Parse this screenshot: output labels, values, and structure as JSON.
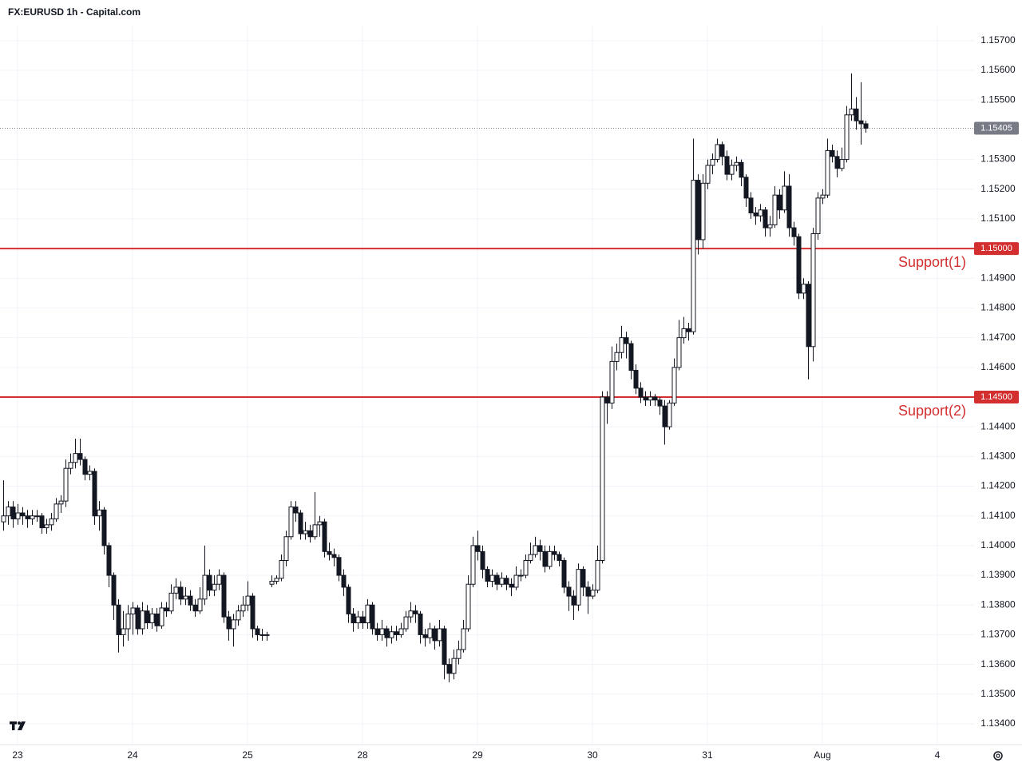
{
  "chart_data": {
    "type": "candlestick",
    "title": "FX:EURUSD 1h - Capital.com",
    "colors": {
      "up": "#ffffff",
      "down": "#131722",
      "outline": "#131722",
      "support": "#d32f2f",
      "last": "#787b86"
    },
    "grid": true,
    "ylim": [
      1.1333,
      1.15748
    ],
    "yticks": [
      {
        "value": 1.134,
        "label": "1.13400"
      },
      {
        "value": 1.135,
        "label": "1.13500"
      },
      {
        "value": 1.136,
        "label": "1.13600"
      },
      {
        "value": 1.137,
        "label": "1.13700"
      },
      {
        "value": 1.138,
        "label": "1.13800"
      },
      {
        "value": 1.139,
        "label": "1.13900"
      },
      {
        "value": 1.14,
        "label": "1.14000"
      },
      {
        "value": 1.141,
        "label": "1.14100"
      },
      {
        "value": 1.142,
        "label": "1.14200"
      },
      {
        "value": 1.143,
        "label": "1.14300"
      },
      {
        "value": 1.144,
        "label": "1.14400"
      },
      {
        "value": 1.146,
        "label": "1.14600"
      },
      {
        "value": 1.147,
        "label": "1.14700"
      },
      {
        "value": 1.148,
        "label": "1.14800"
      },
      {
        "value": 1.149,
        "label": "1.14900"
      },
      {
        "value": 1.151,
        "label": "1.15100"
      },
      {
        "value": 1.152,
        "label": "1.15200"
      },
      {
        "value": 1.153,
        "label": "1.15300"
      },
      {
        "value": 1.155,
        "label": "1.15500"
      },
      {
        "value": 1.156,
        "label": "1.15600"
      },
      {
        "value": 1.157,
        "label": "1.15700"
      }
    ],
    "xlim": [
      -0.67,
      202.67
    ],
    "xticks": [
      {
        "value": 3,
        "label": "23"
      },
      {
        "value": 27,
        "label": "24"
      },
      {
        "value": 51,
        "label": "25"
      },
      {
        "value": 75,
        "label": "28"
      },
      {
        "value": 99,
        "label": "29"
      },
      {
        "value": 123,
        "label": "30"
      },
      {
        "value": 147,
        "label": "31"
      },
      {
        "value": 171,
        "label": "Aug"
      },
      {
        "value": 195,
        "label": "4"
      }
    ],
    "support_levels": [
      {
        "value": 1.15,
        "label": "1.15000",
        "text": "Support(1)"
      },
      {
        "value": 1.145,
        "label": "1.14500",
        "text": "Support(2)"
      }
    ],
    "last_price": 1.15405,
    "ohlc": [
      [
        1.1408,
        1.1422,
        1.1405,
        1.141
      ],
      [
        1.141,
        1.1415,
        1.1407,
        1.1413
      ],
      [
        1.1413,
        1.1415,
        1.1406,
        1.1409
      ],
      [
        1.1409,
        1.1414,
        1.1407,
        1.1411
      ],
      [
        1.1411,
        1.1413,
        1.1407,
        1.141
      ],
      [
        1.141,
        1.1412,
        1.1406,
        1.1409
      ],
      [
        1.1409,
        1.1412,
        1.1407,
        1.141
      ],
      [
        1.141,
        1.1412,
        1.1408,
        1.141
      ],
      [
        1.141,
        1.1411,
        1.1404,
        1.1406
      ],
      [
        1.1406,
        1.1409,
        1.1404,
        1.1407
      ],
      [
        1.1407,
        1.1411,
        1.1405,
        1.1409
      ],
      [
        1.1409,
        1.1416,
        1.1408,
        1.1414
      ],
      [
        1.1414,
        1.1417,
        1.1411,
        1.1415
      ],
      [
        1.1415,
        1.1429,
        1.1413,
        1.1426
      ],
      [
        1.1426,
        1.1431,
        1.1424,
        1.1428
      ],
      [
        1.1428,
        1.1436,
        1.1426,
        1.1431
      ],
      [
        1.1431,
        1.1436,
        1.1427,
        1.1429
      ],
      [
        1.1429,
        1.143,
        1.1422,
        1.1424
      ],
      [
        1.1424,
        1.1427,
        1.1422,
        1.1425
      ],
      [
        1.1425,
        1.1426,
        1.1407,
        1.141
      ],
      [
        1.141,
        1.1415,
        1.1405,
        1.1412
      ],
      [
        1.1412,
        1.1413,
        1.1397,
        1.14
      ],
      [
        1.14,
        1.1401,
        1.1386,
        1.139
      ],
      [
        1.139,
        1.1391,
        1.1375,
        1.138
      ],
      [
        1.138,
        1.1382,
        1.1364,
        1.137
      ],
      [
        1.137,
        1.1378,
        1.1366,
        1.1372
      ],
      [
        1.1372,
        1.138,
        1.1368,
        1.1377
      ],
      [
        1.1377,
        1.1381,
        1.137,
        1.1379
      ],
      [
        1.1379,
        1.138,
        1.137,
        1.1372
      ],
      [
        1.1372,
        1.1381,
        1.137,
        1.1378
      ],
      [
        1.1378,
        1.138,
        1.1372,
        1.1374
      ],
      [
        1.1374,
        1.1379,
        1.1372,
        1.1377
      ],
      [
        1.1377,
        1.1379,
        1.1371,
        1.1373
      ],
      [
        1.1373,
        1.1381,
        1.1372,
        1.1379
      ],
      [
        1.1379,
        1.1381,
        1.1376,
        1.1378
      ],
      [
        1.1378,
        1.1387,
        1.1377,
        1.1384
      ],
      [
        1.1384,
        1.1389,
        1.1382,
        1.1386
      ],
      [
        1.1386,
        1.1388,
        1.138,
        1.1382
      ],
      [
        1.1382,
        1.1386,
        1.138,
        1.1383
      ],
      [
        1.1383,
        1.1385,
        1.1378,
        1.138
      ],
      [
        1.138,
        1.1382,
        1.1376,
        1.1378
      ],
      [
        1.1378,
        1.1386,
        1.1377,
        1.1382
      ],
      [
        1.1382,
        1.14,
        1.138,
        1.139
      ],
      [
        1.139,
        1.1392,
        1.1383,
        1.1385
      ],
      [
        1.1385,
        1.139,
        1.1383,
        1.1387
      ],
      [
        1.1387,
        1.1392,
        1.1385,
        1.139
      ],
      [
        1.139,
        1.1391,
        1.1374,
        1.1376
      ],
      [
        1.1376,
        1.1378,
        1.1368,
        1.1372
      ],
      [
        1.1372,
        1.1377,
        1.1366,
        1.1375
      ],
      [
        1.1375,
        1.138,
        1.1373,
        1.1378
      ],
      [
        1.1378,
        1.1383,
        1.1376,
        1.138
      ],
      [
        1.138,
        1.1388,
        1.1378,
        1.1383
      ],
      [
        1.1383,
        1.1384,
        1.1369,
        1.1372
      ],
      [
        1.1372,
        1.1373,
        1.1368,
        1.137
      ],
      [
        1.137,
        1.1372,
        1.1368,
        1.137
      ],
      [
        1.137,
        1.1371,
        1.1368,
        1.137
      ],
      [
        1.1387,
        1.139,
        1.1386,
        1.1388
      ],
      [
        1.1388,
        1.139,
        1.1387,
        1.1389
      ],
      [
        1.1389,
        1.1397,
        1.1388,
        1.1395
      ],
      [
        1.1395,
        1.1405,
        1.1393,
        1.1403
      ],
      [
        1.1403,
        1.1415,
        1.1402,
        1.1413
      ],
      [
        1.1413,
        1.1415,
        1.1408,
        1.1411
      ],
      [
        1.1411,
        1.1412,
        1.1402,
        1.1404
      ],
      [
        1.1404,
        1.1408,
        1.1402,
        1.1405
      ],
      [
        1.1405,
        1.1407,
        1.1401,
        1.1403
      ],
      [
        1.1403,
        1.1418,
        1.1402,
        1.1407
      ],
      [
        1.1407,
        1.141,
        1.1403,
        1.1408
      ],
      [
        1.1408,
        1.1409,
        1.1396,
        1.1398
      ],
      [
        1.1398,
        1.1401,
        1.1395,
        1.1397
      ],
      [
        1.1397,
        1.1399,
        1.1393,
        1.1396
      ],
      [
        1.1396,
        1.1397,
        1.1388,
        1.139
      ],
      [
        1.139,
        1.1392,
        1.1383,
        1.1386
      ],
      [
        1.1386,
        1.1387,
        1.1374,
        1.1377
      ],
      [
        1.1377,
        1.1379,
        1.1371,
        1.1374
      ],
      [
        1.1374,
        1.1378,
        1.1372,
        1.1376
      ],
      [
        1.1376,
        1.1378,
        1.1372,
        1.1374
      ],
      [
        1.1374,
        1.1382,
        1.1372,
        1.138
      ],
      [
        1.138,
        1.1381,
        1.137,
        1.1372
      ],
      [
        1.1372,
        1.1374,
        1.1368,
        1.137
      ],
      [
        1.137,
        1.1375,
        1.1368,
        1.1372
      ],
      [
        1.1372,
        1.1373,
        1.1366,
        1.1369
      ],
      [
        1.1369,
        1.1373,
        1.1367,
        1.1371
      ],
      [
        1.1371,
        1.1373,
        1.1368,
        1.137
      ],
      [
        1.137,
        1.1374,
        1.1369,
        1.1372
      ],
      [
        1.1372,
        1.1378,
        1.1371,
        1.1376
      ],
      [
        1.1376,
        1.1381,
        1.1374,
        1.1378
      ],
      [
        1.1378,
        1.138,
        1.1374,
        1.1377
      ],
      [
        1.1377,
        1.1378,
        1.1367,
        1.137
      ],
      [
        1.137,
        1.1372,
        1.1366,
        1.1369
      ],
      [
        1.1369,
        1.1374,
        1.1367,
        1.1372
      ],
      [
        1.1372,
        1.1373,
        1.1365,
        1.1368
      ],
      [
        1.1368,
        1.1375,
        1.1366,
        1.1372
      ],
      [
        1.1372,
        1.1373,
        1.1355,
        1.136
      ],
      [
        1.136,
        1.1362,
        1.1354,
        1.1357
      ],
      [
        1.1357,
        1.1365,
        1.1355,
        1.1362
      ],
      [
        1.1362,
        1.1368,
        1.136,
        1.1365
      ],
      [
        1.1365,
        1.1375,
        1.1364,
        1.1372
      ],
      [
        1.1372,
        1.139,
        1.1371,
        1.1387
      ],
      [
        1.1387,
        1.1403,
        1.1386,
        1.14
      ],
      [
        1.14,
        1.1405,
        1.1395,
        1.1398
      ],
      [
        1.1398,
        1.14,
        1.1389,
        1.1392
      ],
      [
        1.1392,
        1.1393,
        1.1386,
        1.1388
      ],
      [
        1.1388,
        1.1392,
        1.1386,
        1.139
      ],
      [
        1.139,
        1.1391,
        1.1385,
        1.1387
      ],
      [
        1.1387,
        1.1391,
        1.1386,
        1.1389
      ],
      [
        1.1389,
        1.139,
        1.1385,
        1.1387
      ],
      [
        1.1387,
        1.1389,
        1.1383,
        1.1386
      ],
      [
        1.1386,
        1.1393,
        1.1385,
        1.139
      ],
      [
        1.139,
        1.1392,
        1.1388,
        1.139
      ],
      [
        1.139,
        1.1397,
        1.1389,
        1.1395
      ],
      [
        1.1395,
        1.1401,
        1.1394,
        1.1397
      ],
      [
        1.1397,
        1.1403,
        1.1396,
        1.14
      ],
      [
        1.14,
        1.1402,
        1.1395,
        1.1398
      ],
      [
        1.1398,
        1.14,
        1.1391,
        1.1393
      ],
      [
        1.1393,
        1.14,
        1.1392,
        1.1398
      ],
      [
        1.1398,
        1.14,
        1.1395,
        1.1397
      ],
      [
        1.1397,
        1.1398,
        1.1393,
        1.1395
      ],
      [
        1.1395,
        1.1396,
        1.1384,
        1.1386
      ],
      [
        1.1386,
        1.1388,
        1.1378,
        1.1383
      ],
      [
        1.1383,
        1.1385,
        1.1375,
        1.138
      ],
      [
        1.138,
        1.1394,
        1.1378,
        1.1392
      ],
      [
        1.1392,
        1.1393,
        1.1383,
        1.1386
      ],
      [
        1.1386,
        1.1388,
        1.1377,
        1.1383
      ],
      [
        1.1383,
        1.1387,
        1.1382,
        1.1385
      ],
      [
        1.1385,
        1.14,
        1.1384,
        1.1395
      ],
      [
        1.1395,
        1.1452,
        1.1394,
        1.145
      ],
      [
        1.145,
        1.1452,
        1.1441,
        1.1448
      ],
      [
        1.1448,
        1.1467,
        1.1446,
        1.1462
      ],
      [
        1.1462,
        1.1468,
        1.1459,
        1.1465
      ],
      [
        1.1465,
        1.1474,
        1.1463,
        1.147
      ],
      [
        1.147,
        1.1472,
        1.1463,
        1.1468
      ],
      [
        1.1468,
        1.1469,
        1.1456,
        1.1459
      ],
      [
        1.1459,
        1.1461,
        1.1451,
        1.1453
      ],
      [
        1.1453,
        1.1455,
        1.1448,
        1.145
      ],
      [
        1.145,
        1.1452,
        1.1447,
        1.1449
      ],
      [
        1.1449,
        1.1452,
        1.1447,
        1.145
      ],
      [
        1.145,
        1.1451,
        1.1447,
        1.1449
      ],
      [
        1.1449,
        1.145,
        1.1444,
        1.1447
      ],
      [
        1.1447,
        1.1449,
        1.1434,
        1.144
      ],
      [
        1.144,
        1.1449,
        1.1439,
        1.1448
      ],
      [
        1.1448,
        1.1463,
        1.1447,
        1.146
      ],
      [
        1.146,
        1.1476,
        1.1459,
        1.147
      ],
      [
        1.147,
        1.1477,
        1.1468,
        1.1473
      ],
      [
        1.1473,
        1.1475,
        1.1469,
        1.1472
      ],
      [
        1.1472,
        1.1537,
        1.1471,
        1.1523
      ],
      [
        1.1523,
        1.1525,
        1.1498,
        1.1503
      ],
      [
        1.1503,
        1.1525,
        1.15,
        1.1522
      ],
      [
        1.1522,
        1.153,
        1.152,
        1.1528
      ],
      [
        1.1528,
        1.1532,
        1.1525,
        1.153
      ],
      [
        1.153,
        1.1537,
        1.1529,
        1.1535
      ],
      [
        1.1535,
        1.1536,
        1.1528,
        1.1531
      ],
      [
        1.1531,
        1.1533,
        1.1523,
        1.1525
      ],
      [
        1.1525,
        1.153,
        1.1523,
        1.1528
      ],
      [
        1.1528,
        1.1531,
        1.1526,
        1.1529
      ],
      [
        1.1529,
        1.153,
        1.1521,
        1.1524
      ],
      [
        1.1524,
        1.1525,
        1.1514,
        1.1517
      ],
      [
        1.1517,
        1.1519,
        1.151,
        1.1512
      ],
      [
        1.1512,
        1.1514,
        1.1508,
        1.1511
      ],
      [
        1.1511,
        1.1515,
        1.1509,
        1.1513
      ],
      [
        1.1513,
        1.1514,
        1.1504,
        1.1507
      ],
      [
        1.1507,
        1.1511,
        1.1504,
        1.1508
      ],
      [
        1.1508,
        1.1521,
        1.1507,
        1.1518
      ],
      [
        1.1518,
        1.152,
        1.151,
        1.1513
      ],
      [
        1.1513,
        1.1526,
        1.1512,
        1.1521
      ],
      [
        1.1521,
        1.1525,
        1.1504,
        1.1507
      ],
      [
        1.1507,
        1.1509,
        1.1501,
        1.1504
      ],
      [
        1.1504,
        1.1505,
        1.1483,
        1.1485
      ],
      [
        1.1485,
        1.149,
        1.1483,
        1.1488
      ],
      [
        1.1488,
        1.1489,
        1.1456,
        1.1467
      ],
      [
        1.1467,
        1.1507,
        1.1462,
        1.1505
      ],
      [
        1.1505,
        1.1519,
        1.1503,
        1.1517
      ],
      [
        1.1517,
        1.152,
        1.1515,
        1.1518
      ],
      [
        1.1518,
        1.1537,
        1.1517,
        1.1533
      ],
      [
        1.1533,
        1.1535,
        1.1529,
        1.1531
      ],
      [
        1.1531,
        1.1533,
        1.1524,
        1.1527
      ],
      [
        1.1527,
        1.1534,
        1.1526,
        1.153
      ],
      [
        1.153,
        1.1548,
        1.1529,
        1.1545
      ],
      [
        1.1545,
        1.1559,
        1.1543,
        1.1547
      ],
      [
        1.1547,
        1.1551,
        1.154,
        1.1543
      ],
      [
        1.1543,
        1.1556,
        1.1535,
        1.1542
      ],
      [
        1.1542,
        1.1543,
        1.1539,
        1.15405
      ]
    ]
  }
}
